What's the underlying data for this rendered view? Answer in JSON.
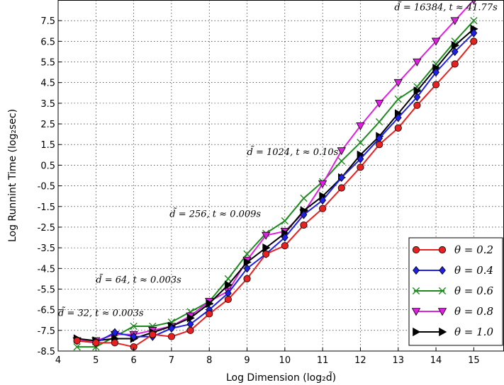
{
  "chart_data": {
    "type": "line",
    "xlabel": "Log Dimension (log₂d̃)",
    "ylabel": "Log Runnint Time (log₂sec)",
    "xlim": [
      4,
      15.8
    ],
    "ylim": [
      -8.5,
      8.5
    ],
    "xticks": [
      4,
      5,
      6,
      7,
      8,
      9,
      10,
      11,
      12,
      13,
      14,
      15
    ],
    "yticks": [
      -8.5,
      -7.5,
      -6.5,
      -5.5,
      -4.5,
      -3.5,
      -2.5,
      -1.5,
      -0.5,
      0.5,
      1.5,
      2.5,
      3.5,
      4.5,
      5.5,
      6.5,
      7.5
    ],
    "grid": true,
    "legend_position": "bottom-right",
    "x": [
      4.5,
      5,
      5.5,
      6,
      6.5,
      7,
      7.5,
      8,
      8.5,
      9,
      9.5,
      10,
      10.5,
      11,
      11.5,
      12,
      12.5,
      13,
      13.5,
      14,
      14.5,
      15
    ],
    "series": [
      {
        "name": "θ = 0.2",
        "color": "#e8201f",
        "marker": "circle",
        "values": [
          -8.0,
          -8.1,
          -8.1,
          -8.3,
          -7.7,
          -7.8,
          -7.5,
          -6.7,
          -6.0,
          -5.0,
          -3.8,
          -3.4,
          -2.4,
          -1.6,
          -0.6,
          0.4,
          1.5,
          2.3,
          3.4,
          4.4,
          5.4,
          6.5
        ]
      },
      {
        "name": "θ = 0.4",
        "color": "#1f1fe8",
        "marker": "diamond",
        "values": [
          -8.0,
          -8.1,
          -7.6,
          -7.8,
          -7.8,
          -7.4,
          -7.2,
          -6.5,
          -5.7,
          -4.5,
          -3.8,
          -3.0,
          -1.9,
          -1.2,
          -0.1,
          0.8,
          1.8,
          2.8,
          3.8,
          5.0,
          6.0,
          6.9
        ]
      },
      {
        "name": "θ = 0.6",
        "color": "#1e8a1e",
        "marker": "x",
        "values": [
          -8.3,
          -8.3,
          -7.8,
          -7.3,
          -7.3,
          -7.1,
          -6.6,
          -6.1,
          -5.0,
          -3.8,
          -2.8,
          -2.2,
          -1.1,
          -0.3,
          0.7,
          1.6,
          2.6,
          3.7,
          4.3,
          5.4,
          6.5,
          7.5
        ]
      },
      {
        "name": "θ = 0.8",
        "color": "#e020e0",
        "marker": "triangle-down",
        "values": [
          -8.0,
          -8.0,
          -7.7,
          -7.7,
          -7.5,
          -7.3,
          -6.8,
          -6.1,
          -5.6,
          -4.1,
          -2.9,
          -2.7,
          -1.8,
          -0.4,
          1.2,
          2.4,
          3.5,
          4.5,
          5.5,
          6.5,
          7.5,
          8.5
        ]
      },
      {
        "name": "θ = 1.0",
        "color": "#000000",
        "marker": "triangle-right",
        "values": [
          -7.9,
          -8.0,
          -7.9,
          -7.9,
          -7.6,
          -7.3,
          -6.9,
          -6.2,
          -5.3,
          -4.2,
          -3.5,
          -2.8,
          -1.7,
          -1.0,
          -0.1,
          1.0,
          1.9,
          3.0,
          4.1,
          5.2,
          6.3,
          7.1
        ]
      }
    ],
    "annotations": [
      {
        "text": "d̃ = 32, t ≈ 0.003s",
        "x": 4,
        "y": -6.8
      },
      {
        "text": "d̃ = 64, t ≈ 0.003s",
        "x": 5.0,
        "y": -5.2
      },
      {
        "text": "d̃ = 256, t ≈ 0.009s",
        "x": 6.95,
        "y": -2.0
      },
      {
        "text": "d̃ = 1024, t ≈ 0.10s",
        "x": 9.0,
        "y": 1.0
      },
      {
        "text": "d̃ = 16384, t ≈ 41.77s",
        "x": 12.9,
        "y": 8.0
      }
    ]
  }
}
